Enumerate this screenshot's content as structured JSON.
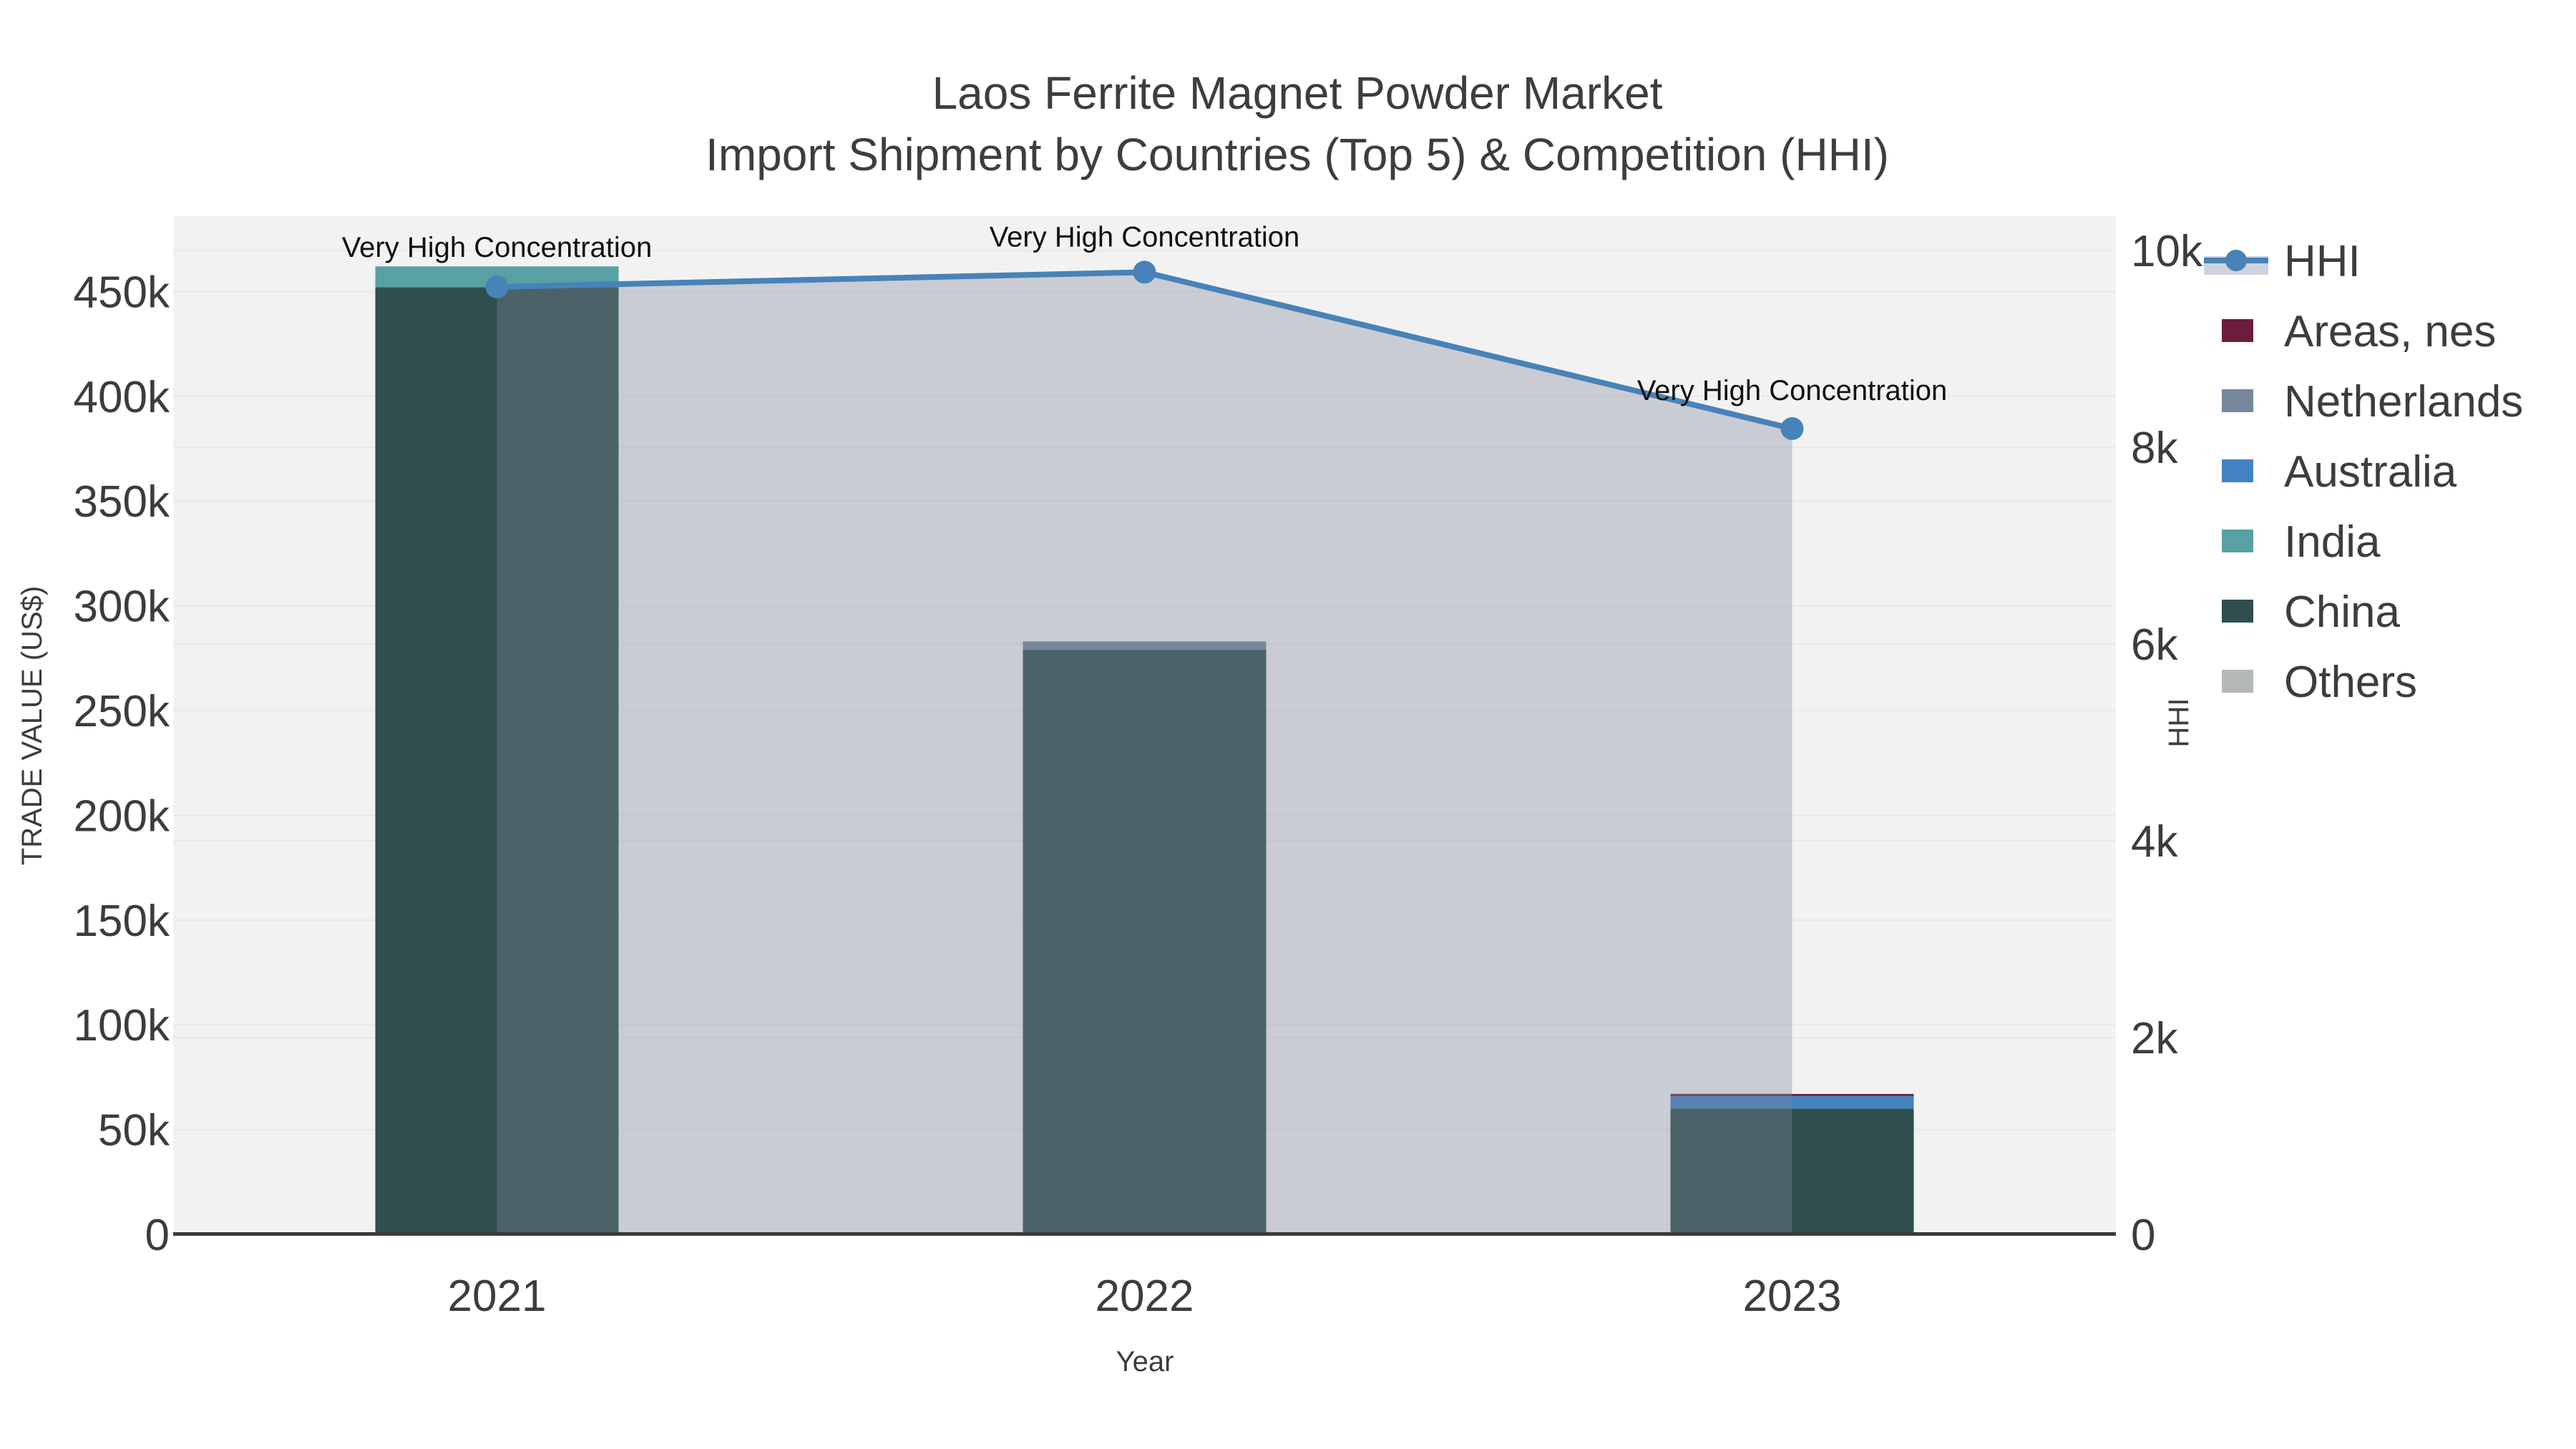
{
  "figure": {
    "title_line1": "Laos Ferrite Magnet Powder Market",
    "title_line2": "Import Shipment by Countries (Top 5) & Competition (HHI)"
  },
  "chart_data": {
    "type": "combo-stacked-bar-line",
    "title": "Laos Ferrite Magnet Powder Market",
    "subtitle": "Import Shipment by Countries (Top 5) & Competition (HHI)",
    "categories": [
      "2021",
      "2022",
      "2023"
    ],
    "bar_series": [
      {
        "name": "Others",
        "color": "#b4b8b6",
        "values": [
          0,
          0,
          0
        ]
      },
      {
        "name": "China",
        "color": "#2e4f4e",
        "values": [
          452000,
          279000,
          60000
        ]
      },
      {
        "name": "India",
        "color": "#57a1a2",
        "values": [
          10000,
          0,
          0
        ]
      },
      {
        "name": "Australia",
        "color": "#4382c0",
        "values": [
          0,
          0,
          6000
        ]
      },
      {
        "name": "Netherlands",
        "color": "#76879c",
        "values": [
          0,
          4000,
          0
        ]
      },
      {
        "name": "Areas, nes",
        "color": "#6c1d3d",
        "values": [
          0,
          0,
          1000
        ]
      }
    ],
    "line_series": {
      "name": "HHI",
      "color": "#4783b8",
      "fill_color": "rgba(125,135,155,0.35)",
      "values": [
        9630,
        9780,
        8190
      ]
    },
    "annotations": [
      "Very High Concentration",
      "Very High Concentration",
      "Very High Concentration"
    ],
    "left_axis": {
      "label": "TRADE VALUE (US$)",
      "ticks": [
        "0",
        "50k",
        "100k",
        "150k",
        "200k",
        "250k",
        "300k",
        "350k",
        "400k",
        "450k"
      ],
      "tick_values": [
        0,
        50000,
        100000,
        150000,
        200000,
        250000,
        300000,
        350000,
        400000,
        450000
      ],
      "max": 486000
    },
    "right_axis": {
      "label": "HHI",
      "ticks": [
        "0",
        "2k",
        "4k",
        "6k",
        "8k",
        "10k"
      ],
      "tick_values": [
        0,
        2000,
        4000,
        6000,
        8000,
        10000
      ],
      "max": 10350
    },
    "x_axis": {
      "label": "Year"
    },
    "legend": [
      {
        "label": "HHI",
        "type": "line",
        "color": "#4783b8",
        "band_color": "#ccd3dd"
      },
      {
        "label": "Areas, nes",
        "type": "patch",
        "color": "#6c1d3d"
      },
      {
        "label": "Netherlands",
        "type": "patch",
        "color": "#76879c"
      },
      {
        "label": "Australia",
        "type": "patch",
        "color": "#4382c0"
      },
      {
        "label": "India",
        "type": "patch",
        "color": "#57a1a2"
      },
      {
        "label": "China",
        "type": "patch",
        "color": "#2e4f4e"
      },
      {
        "label": "Others",
        "type": "patch",
        "color": "#b4b8b6"
      }
    ],
    "style": {
      "plot_bg": "#f2f2f2",
      "grid_color": "#e8e8e8",
      "axis_line_color": "#3a3a3a",
      "annotation_color": "#111111",
      "text_color": "#3c3c3c"
    }
  }
}
